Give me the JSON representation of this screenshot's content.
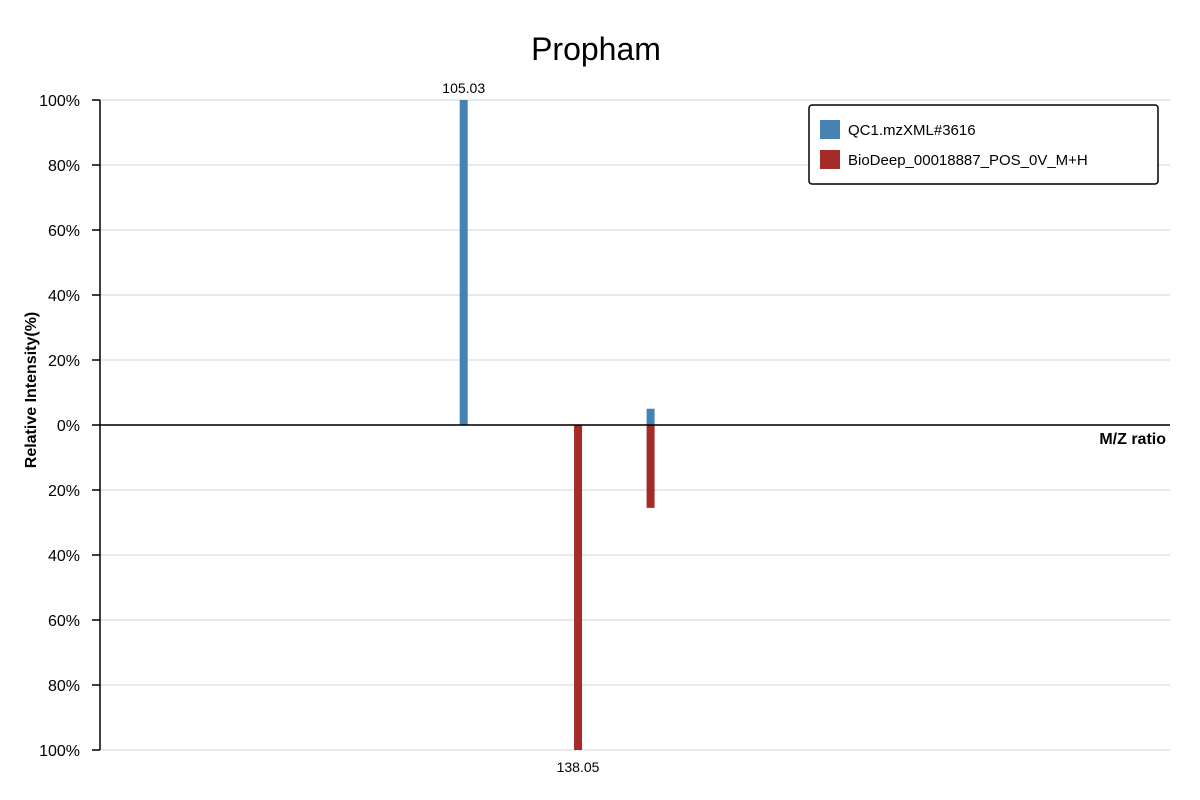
{
  "chart_data": {
    "type": "bar",
    "title": "Propham",
    "xlabel": "M/Z ratio",
    "ylabel": "Relative Intensity(%)",
    "ylim": [
      -100,
      100
    ],
    "xlim": [
      0,
      309
    ],
    "yticks": [
      "100%",
      "80%",
      "60%",
      "40%",
      "20%",
      "0%",
      "20%",
      "40%",
      "60%",
      "80%",
      "100%"
    ],
    "grid": true,
    "legend_position": "top-right",
    "series": [
      {
        "name": "QC1.mzXML#3616",
        "color": "#4682b4",
        "direction": "up",
        "peaks": [
          {
            "mz": 105.03,
            "intensity": 100,
            "label": "105.03"
          },
          {
            "mz": 159.0,
            "intensity": 5,
            "label": ""
          }
        ]
      },
      {
        "name": "BioDeep_00018887_POS_0V_M+H",
        "color": "#a52a2a",
        "direction": "down",
        "peaks": [
          {
            "mz": 138.05,
            "intensity": 100,
            "label": "138.05"
          },
          {
            "mz": 159.0,
            "intensity": 25.5,
            "label": ""
          }
        ]
      }
    ]
  }
}
